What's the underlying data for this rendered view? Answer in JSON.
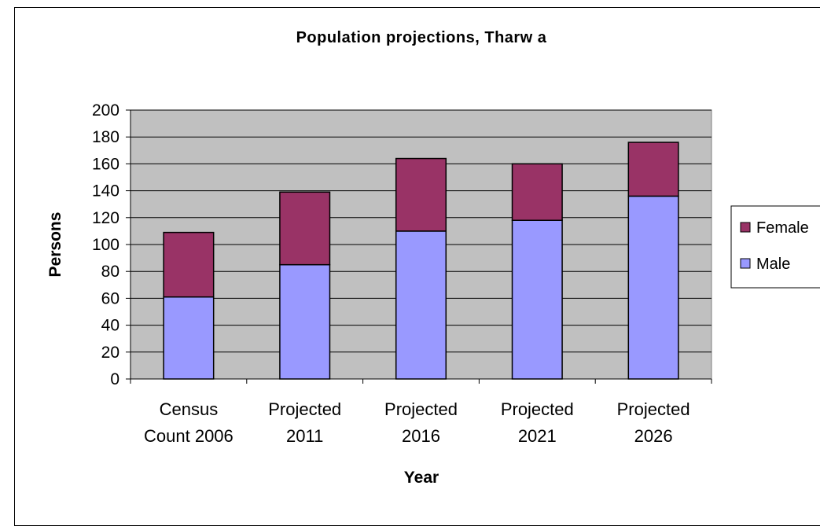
{
  "chart_data": {
    "type": "bar",
    "stacked": true,
    "title": "Population projections, Tharw a",
    "xlabel": "Year",
    "ylabel": "Persons",
    "ylim": [
      0,
      200
    ],
    "yticks": [
      0,
      20,
      40,
      60,
      80,
      100,
      120,
      140,
      160,
      180,
      200
    ],
    "grid": true,
    "legend_position": "right",
    "categories": [
      [
        "Census",
        "Count 2006"
      ],
      [
        "Projected",
        "2011"
      ],
      [
        "Projected",
        "2016"
      ],
      [
        "Projected",
        "2021"
      ],
      [
        "Projected",
        "2026"
      ]
    ],
    "series": [
      {
        "name": "Male",
        "color": "#9999FF",
        "values": [
          61,
          85,
          110,
          118,
          136
        ]
      },
      {
        "name": "Female",
        "color": "#993366",
        "values": [
          48,
          54,
          54,
          42,
          40
        ]
      }
    ],
    "legend_order": [
      "Female",
      "Male"
    ],
    "plot_background": "#C0C0C0"
  }
}
